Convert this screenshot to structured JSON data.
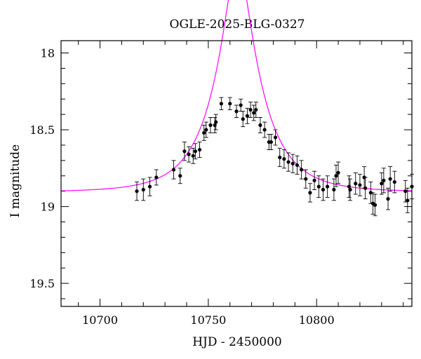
{
  "chart_data": {
    "type": "scatter",
    "title": "OGLE-2025-BLG-0327",
    "xlabel": "HJD - 2450000",
    "ylabel": "I magnitude",
    "xlim": [
      10682,
      10844
    ],
    "ylim": [
      19.65,
      17.92
    ],
    "y_inverted": true,
    "grid": false,
    "x_ticks": [
      10700,
      10750,
      10800
    ],
    "x_tick_labels": [
      "10700",
      "10750",
      "10800"
    ],
    "y_ticks": [
      18,
      18.5,
      19,
      19.5
    ],
    "y_tick_labels": [
      "18",
      "18.5",
      "19",
      "19.5"
    ],
    "colors": {
      "points": "#000000",
      "model": "#ff00ff"
    },
    "model": {
      "t0": 10763.5,
      "u0": 0.26,
      "tE": 21,
      "baseline_mag": 18.905
    },
    "series": [
      {
        "kind": "points",
        "x": [
          10717,
          10720,
          10723,
          10726,
          10734,
          10737,
          10739,
          10741,
          10743,
          10744,
          10746,
          10748,
          10749,
          10751,
          10753,
          10753.5,
          10756,
          10760,
          10763,
          10765,
          10766,
          10768,
          10769.5,
          10771,
          10772,
          10774,
          10776,
          10778,
          10779,
          10781,
          10783,
          10785,
          10787,
          10789,
          10791,
          10793,
          10795,
          10797,
          10799,
          10801,
          10803,
          10805,
          10808,
          10809,
          10810,
          10815,
          10815.5,
          10818,
          10820,
          10822,
          10822.5,
          10825,
          10826,
          10827,
          10830,
          10831,
          10833,
          10834,
          10836,
          10841,
          10842,
          10844
        ],
        "y": [
          18.9,
          18.89,
          18.87,
          18.81,
          18.76,
          18.8,
          18.64,
          18.66,
          18.67,
          18.64,
          18.63,
          18.52,
          18.5,
          18.47,
          18.47,
          18.45,
          18.33,
          18.33,
          18.38,
          18.34,
          18.43,
          18.41,
          18.37,
          18.39,
          18.37,
          18.47,
          18.5,
          18.58,
          18.58,
          18.55,
          18.68,
          18.69,
          18.71,
          18.72,
          18.73,
          18.76,
          18.82,
          18.91,
          18.83,
          18.87,
          18.89,
          18.87,
          18.89,
          18.8,
          18.78,
          18.87,
          18.89,
          18.85,
          18.86,
          18.81,
          18.88,
          18.91,
          18.98,
          18.99,
          18.85,
          18.83,
          18.95,
          18.82,
          18.84,
          18.9,
          18.96,
          18.87
        ],
        "err": [
          0.06,
          0.07,
          0.06,
          0.05,
          0.06,
          0.05,
          0.06,
          0.05,
          0.05,
          0.05,
          0.05,
          0.05,
          0.05,
          0.05,
          0.05,
          0.05,
          0.04,
          0.04,
          0.04,
          0.04,
          0.05,
          0.05,
          0.05,
          0.05,
          0.05,
          0.05,
          0.05,
          0.05,
          0.05,
          0.05,
          0.06,
          0.06,
          0.06,
          0.06,
          0.06,
          0.06,
          0.06,
          0.06,
          0.06,
          0.07,
          0.07,
          0.07,
          0.07,
          0.07,
          0.07,
          0.07,
          0.07,
          0.07,
          0.07,
          0.07,
          0.07,
          0.07,
          0.07,
          0.07,
          0.07,
          0.08,
          0.07,
          0.08,
          0.07,
          0.07,
          0.08,
          0.08
        ]
      }
    ]
  }
}
